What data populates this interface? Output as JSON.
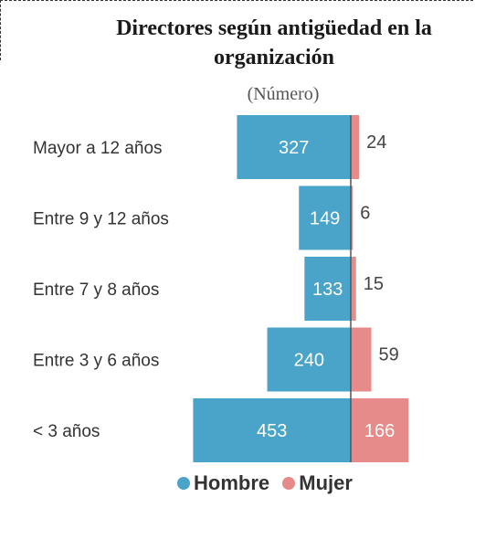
{
  "title": "Directores según antigüedad en la organización",
  "subtitle": "(Número)",
  "colors": {
    "hombre": "#4aa3c8",
    "mujer": "#e78a8a",
    "axis": "#555555"
  },
  "legend": {
    "hombre": "Hombre",
    "mujer": "Mujer"
  },
  "chart_data": {
    "type": "bar",
    "orientation": "horizontal-diverging",
    "categories": [
      "Mayor a 12 años",
      "Entre 9 y 12 años",
      "Entre 7 y 8 años",
      "Entre 3 y 6 años",
      "< 3 años"
    ],
    "series": [
      {
        "name": "Hombre",
        "values": [
          327,
          149,
          133,
          240,
          453
        ]
      },
      {
        "name": "Mujer",
        "values": [
          24,
          6,
          15,
          59,
          166
        ]
      }
    ],
    "legend_position": "bottom"
  }
}
